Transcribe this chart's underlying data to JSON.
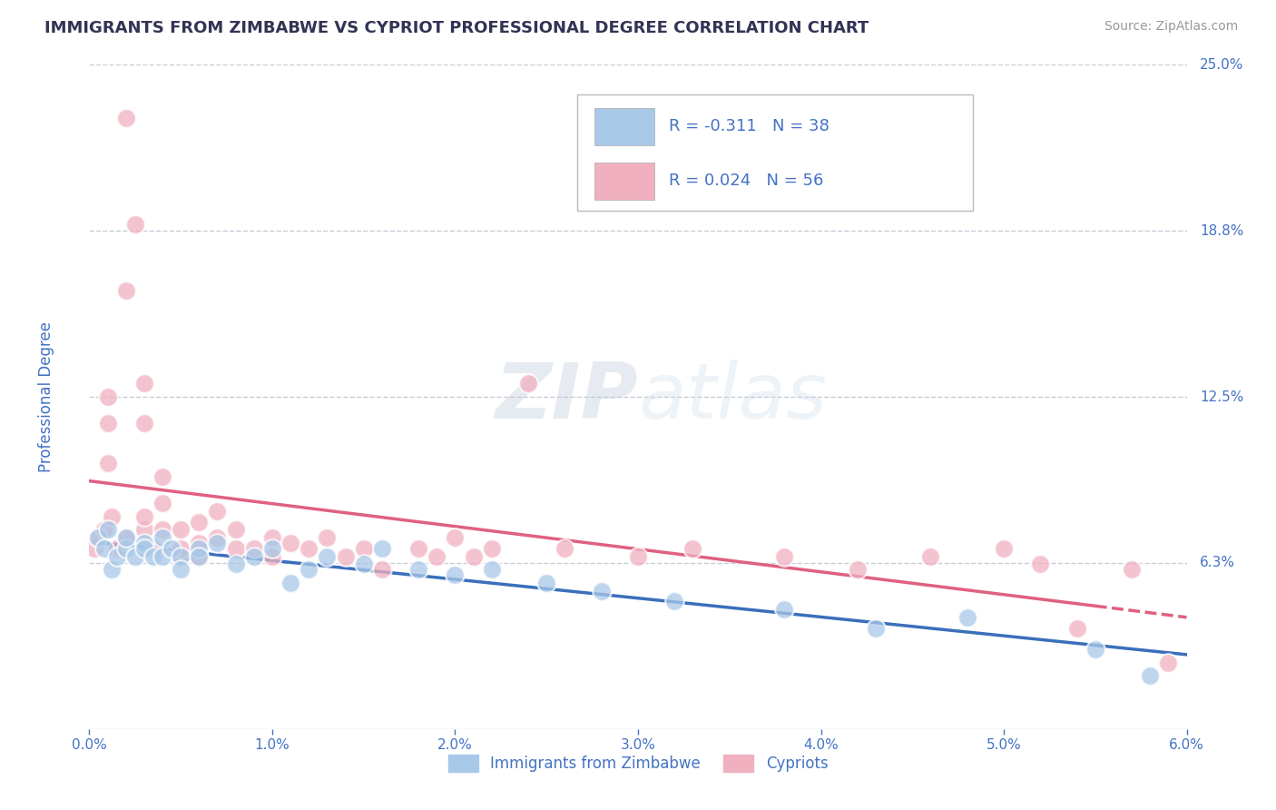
{
  "title": "IMMIGRANTS FROM ZIMBABWE VS CYPRIOT PROFESSIONAL DEGREE CORRELATION CHART",
  "source": "Source: ZipAtlas.com",
  "ylabel": "Professional Degree",
  "x_label_bottom": "Immigrants from Zimbabwe",
  "x_min": 0.0,
  "x_max": 0.06,
  "y_min": 0.0,
  "y_max": 0.25,
  "y_ticks": [
    0.0,
    0.0625,
    0.125,
    0.1875,
    0.25
  ],
  "y_tick_labels": [
    "",
    "6.3%",
    "12.5%",
    "18.8%",
    "25.0%"
  ],
  "x_ticks": [
    0.0,
    0.01,
    0.02,
    0.03,
    0.04,
    0.05,
    0.06
  ],
  "x_tick_labels": [
    "0.0%",
    "1.0%",
    "2.0%",
    "3.0%",
    "4.0%",
    "5.0%",
    "6.0%"
  ],
  "blue_R": -0.311,
  "blue_N": 38,
  "pink_R": 0.024,
  "pink_N": 56,
  "blue_color": "#a8c8e8",
  "pink_color": "#f0b0c0",
  "trend_blue_color": "#3a6fba",
  "trend_pink_color": "#e06080",
  "title_color": "#333355",
  "tick_color": "#4472c4",
  "grid_color": "#c8ccd8",
  "watermark_zip": "ZIP",
  "watermark_atlas": "atlas",
  "blue_scatter_x": [
    0.0005,
    0.0008,
    0.001,
    0.0012,
    0.0015,
    0.002,
    0.002,
    0.0025,
    0.003,
    0.003,
    0.0035,
    0.004,
    0.004,
    0.0045,
    0.005,
    0.005,
    0.006,
    0.006,
    0.007,
    0.008,
    0.009,
    0.01,
    0.011,
    0.012,
    0.013,
    0.015,
    0.016,
    0.018,
    0.02,
    0.022,
    0.025,
    0.028,
    0.032,
    0.038,
    0.043,
    0.048,
    0.055,
    0.058
  ],
  "blue_scatter_y": [
    0.072,
    0.068,
    0.075,
    0.06,
    0.065,
    0.068,
    0.072,
    0.065,
    0.07,
    0.068,
    0.065,
    0.072,
    0.065,
    0.068,
    0.065,
    0.06,
    0.068,
    0.065,
    0.07,
    0.062,
    0.065,
    0.068,
    0.055,
    0.06,
    0.065,
    0.062,
    0.068,
    0.06,
    0.058,
    0.06,
    0.055,
    0.052,
    0.048,
    0.045,
    0.038,
    0.042,
    0.03,
    0.02
  ],
  "pink_scatter_x": [
    0.0003,
    0.0005,
    0.0008,
    0.001,
    0.001,
    0.001,
    0.0012,
    0.0015,
    0.002,
    0.002,
    0.002,
    0.0025,
    0.003,
    0.003,
    0.003,
    0.003,
    0.0035,
    0.004,
    0.004,
    0.004,
    0.005,
    0.005,
    0.005,
    0.006,
    0.006,
    0.006,
    0.007,
    0.007,
    0.008,
    0.008,
    0.009,
    0.01,
    0.01,
    0.011,
    0.012,
    0.013,
    0.014,
    0.015,
    0.016,
    0.018,
    0.019,
    0.02,
    0.021,
    0.022,
    0.024,
    0.026,
    0.03,
    0.033,
    0.038,
    0.042,
    0.046,
    0.05,
    0.052,
    0.054,
    0.057,
    0.059
  ],
  "pink_scatter_y": [
    0.068,
    0.072,
    0.075,
    0.1,
    0.115,
    0.125,
    0.08,
    0.068,
    0.072,
    0.23,
    0.165,
    0.19,
    0.075,
    0.08,
    0.115,
    0.13,
    0.068,
    0.075,
    0.085,
    0.095,
    0.065,
    0.068,
    0.075,
    0.065,
    0.07,
    0.078,
    0.072,
    0.082,
    0.068,
    0.075,
    0.068,
    0.072,
    0.065,
    0.07,
    0.068,
    0.072,
    0.065,
    0.068,
    0.06,
    0.068,
    0.065,
    0.072,
    0.065,
    0.068,
    0.13,
    0.068,
    0.065,
    0.068,
    0.065,
    0.06,
    0.065,
    0.068,
    0.062,
    0.038,
    0.06,
    0.025
  ]
}
